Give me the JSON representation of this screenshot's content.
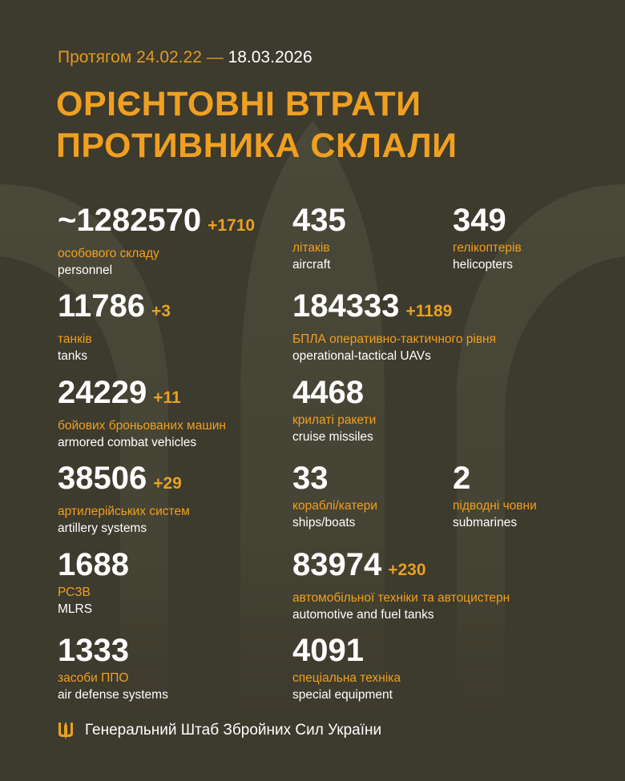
{
  "header": {
    "period_prefix": "Протягом 24.02.22 —",
    "period_end": "18.03.2026",
    "title_line1": "ОРІЄНТОВНІ ВТРАТИ",
    "title_line2": "ПРОТИВНИКА СКЛАЛИ"
  },
  "colors": {
    "background": "#3d3a2e",
    "accent": "#f0a020",
    "text": "#ffffff"
  },
  "stats": [
    {
      "value": "~1282570",
      "delta": "+1710",
      "ua": "особового складу",
      "en": "personnel"
    },
    {
      "value": "435",
      "delta": "",
      "ua": "літаків",
      "en": "aircraft"
    },
    {
      "value": "349",
      "delta": "",
      "ua": "гелікоптерів",
      "en": "helicopters"
    },
    {
      "value": "11786",
      "delta": "+3",
      "ua": "танків",
      "en": "tanks"
    },
    {
      "value": "184333",
      "delta": "+1189",
      "ua": "БПЛА оперативно-тактичного рівня",
      "en": "operational-tactical UAVs"
    },
    {
      "value": "24229",
      "delta": "+11",
      "ua": "бойових броньованих машин",
      "en": "armored combat vehicles"
    },
    {
      "value": "4468",
      "delta": "",
      "ua": "крилаті ракети",
      "en": "cruise missiles"
    },
    {
      "value": "38506",
      "delta": "+29",
      "ua": "артилерійських систем",
      "en": "artillery systems"
    },
    {
      "value": "33",
      "delta": "",
      "ua": "кораблі/катери",
      "en": "ships/boats"
    },
    {
      "value": "2",
      "delta": "",
      "ua": "підводні човни",
      "en": "submarines"
    },
    {
      "value": "1688",
      "delta": "",
      "ua": "РСЗВ",
      "en": "MLRS"
    },
    {
      "value": "83974",
      "delta": "+230",
      "ua": "автомобільної техніки та автоцистерн",
      "en": "automotive and fuel tanks"
    },
    {
      "value": "1333",
      "delta": "",
      "ua": "засоби ППО",
      "en": "air defense systems"
    },
    {
      "value": "4091",
      "delta": "",
      "ua": "спеціальна техніка",
      "en": "special equipment"
    }
  ],
  "footer": {
    "logo_icon": "trident-icon",
    "text": "Генеральний Штаб Збройних Сил України"
  }
}
